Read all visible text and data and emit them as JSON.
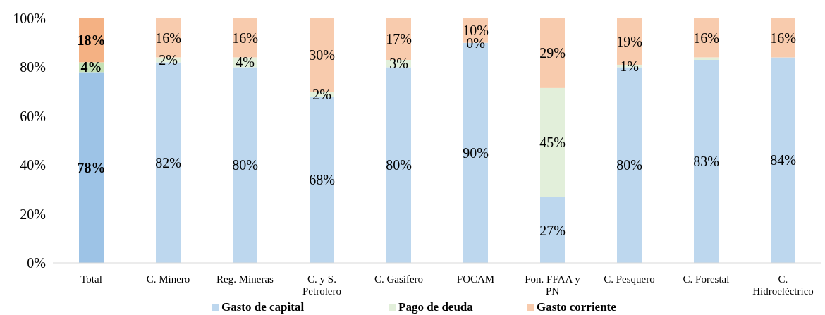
{
  "chart_data": {
    "type": "bar",
    "stacked": true,
    "categories": [
      "Total",
      "C. Minero",
      "Reg. Mineras",
      "C. y S. Petrolero",
      "C. Gasífero",
      "FOCAM",
      "Fon. FFAA y PN",
      "C. Pesquero",
      "C. Forestal",
      "C. Hidroeléctrico"
    ],
    "series": [
      {
        "name": "Gasto de capital",
        "color": "#bdd7ee",
        "colors": [
          "#9dc3e6",
          "#bdd7ee",
          "#bdd7ee",
          "#bdd7ee",
          "#bdd7ee",
          "#bdd7ee",
          "#bdd7ee",
          "#bdd7ee",
          "#bdd7ee",
          "#bdd7ee"
        ],
        "values": [
          78,
          82,
          80,
          68,
          80,
          90,
          26.8,
          80,
          83,
          84
        ],
        "value_labels": [
          "78%",
          "82%",
          "80%",
          "68%",
          "80%",
          "90%",
          "27%",
          "80%",
          "83%",
          "84%"
        ]
      },
      {
        "name": "Pago de deuda",
        "color": "#e2efda",
        "colors": [
          "#c5e0b4",
          "#e2efda",
          "#e2efda",
          "#e2efda",
          "#e2efda",
          "#e2efda",
          "#e2efda",
          "#e2efda",
          "#e2efda",
          "#e2efda"
        ],
        "values": [
          4,
          2,
          4,
          2,
          3,
          0,
          44.7,
          1,
          1,
          0
        ],
        "value_labels": [
          "4%",
          "2%",
          "4%",
          "2%",
          "3%",
          "0%",
          "45%",
          "1%",
          null,
          null
        ]
      },
      {
        "name": "Gasto corriente",
        "color": "#f8cbad",
        "colors": [
          "#f4b183",
          "#f8cbad",
          "#f8cbad",
          "#f8cbad",
          "#f8cbad",
          "#f8cbad",
          "#f8cbad",
          "#f8cbad",
          "#f8cbad",
          "#f8cbad"
        ],
        "values": [
          18,
          16,
          16,
          30,
          17,
          10,
          28.5,
          19,
          16,
          16
        ],
        "value_labels": [
          "18%",
          "16%",
          "16%",
          "30%",
          "17%",
          "10%",
          "29%",
          "19%",
          "16%",
          "16%"
        ]
      }
    ],
    "ylim": [
      0,
      100
    ],
    "yticks": [
      {
        "value": 0,
        "label": "0%"
      },
      {
        "value": 20,
        "label": "20%"
      },
      {
        "value": 40,
        "label": "40%"
      },
      {
        "value": 60,
        "label": "60%"
      },
      {
        "value": 80,
        "label": "80%"
      },
      {
        "value": 100,
        "label": "100%"
      }
    ],
    "grid": false,
    "legend": "bottom"
  }
}
